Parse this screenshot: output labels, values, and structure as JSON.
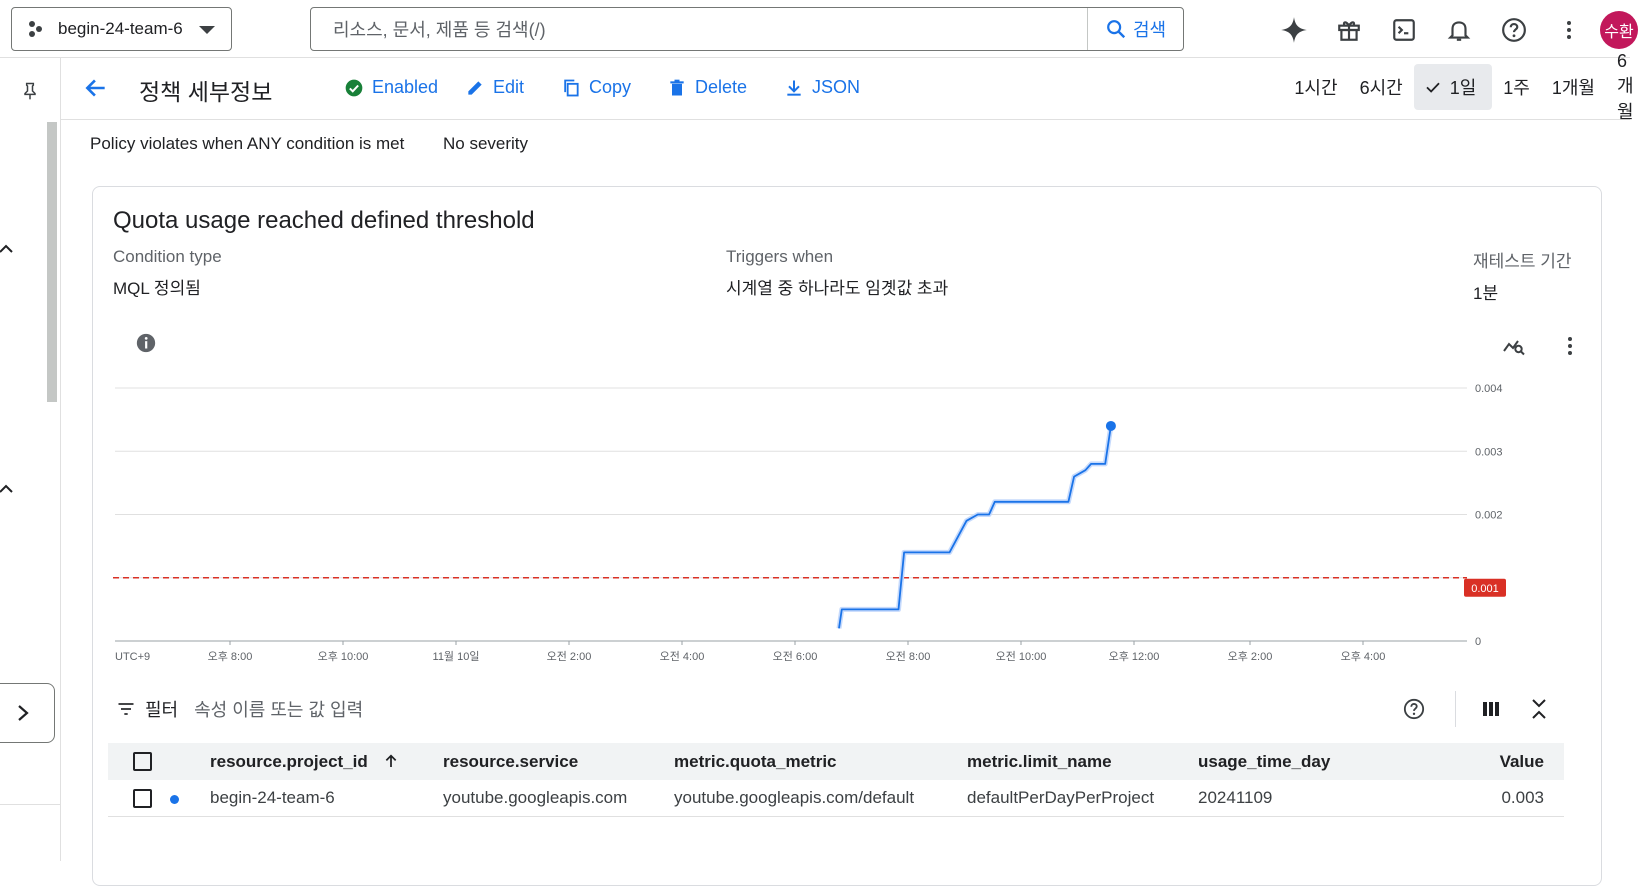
{
  "topbar": {
    "project": "begin-24-team-6",
    "search_placeholder": "리소스, 문서, 제품 등 검색(/)",
    "search_button": "검색",
    "avatar_text": "수환"
  },
  "header": {
    "title": "정책 세부정보",
    "actions": {
      "enabled": "Enabled",
      "edit": "Edit",
      "copy": "Copy",
      "delete": "Delete",
      "json": "JSON"
    },
    "time_ranges": [
      "1시간",
      "6시간",
      "1일",
      "1주",
      "1개월",
      "6개월"
    ],
    "selected_range": "1일"
  },
  "summary": {
    "condition_mode": "Policy violates when ANY condition is met",
    "severity": "No severity"
  },
  "condition": {
    "title": "Quota usage reached defined threshold",
    "type_label": "Condition type",
    "type_value": "MQL 정의됨",
    "trigger_label": "Triggers when",
    "trigger_value": "시계열 중 하나라도 임곗값 초과",
    "retest_label": "재테스트 기간",
    "retest_value": "1분"
  },
  "chart_data": {
    "type": "line",
    "timezone_label": "UTC+9",
    "x_ticks": [
      "오후 8:00",
      "오후 10:00",
      "11월 10일",
      "오전 2:00",
      "오전 4:00",
      "오전 6:00",
      "오전 8:00",
      "오전 10:00",
      "오후 12:00",
      "오후 2:00",
      "오후 4:00"
    ],
    "y_ticks": [
      "0",
      "0.001",
      "0.002",
      "0.003",
      "0.004"
    ],
    "ylim": [
      0,
      0.004
    ],
    "threshold": 0.001,
    "threshold_label": "0.001",
    "threshold_color": "#d93025",
    "series_color": "#1a73e8",
    "series": [
      {
        "points": [
          [
            10.75,
            0.0002
          ],
          [
            10.8,
            0.0005
          ],
          [
            11.8,
            0.0005
          ],
          [
            11.9,
            0.0014
          ],
          [
            12.7,
            0.0014
          ],
          [
            13.0,
            0.0019
          ],
          [
            13.2,
            0.002
          ],
          [
            13.4,
            0.002
          ],
          [
            13.5,
            0.0022
          ],
          [
            14.8,
            0.0022
          ],
          [
            14.9,
            0.0026
          ],
          [
            15.1,
            0.0027
          ],
          [
            15.2,
            0.0028
          ],
          [
            15.45,
            0.0028
          ],
          [
            15.55,
            0.0034
          ]
        ]
      }
    ],
    "grid": true
  },
  "table": {
    "filter_label": "필터",
    "filter_placeholder": "속성 이름 또는 값 입력",
    "columns": [
      "resource.project_id",
      "resource.service",
      "metric.quota_metric",
      "metric.limit_name",
      "usage_time_day",
      "Value"
    ],
    "rows": [
      [
        "begin-24-team-6",
        "youtube.googleapis.com",
        "youtube.googleapis.com/default",
        "defaultPerDayPerProject",
        "20241109",
        "0.003"
      ]
    ]
  }
}
